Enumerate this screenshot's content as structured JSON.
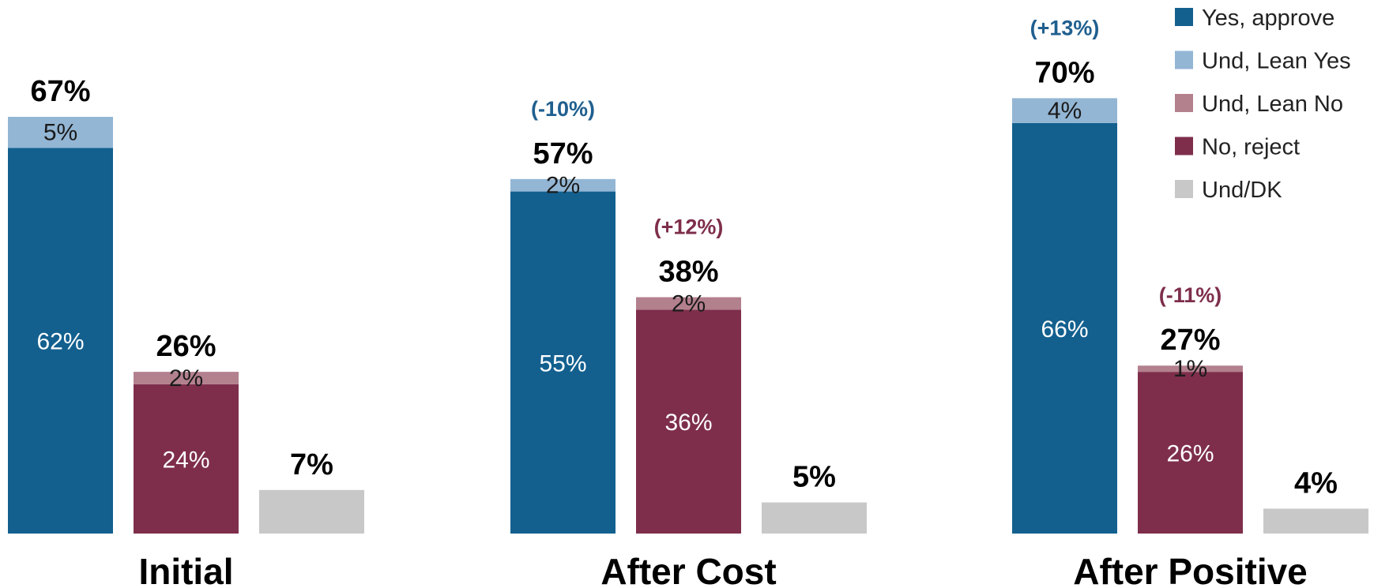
{
  "chart_data": {
    "type": "bar",
    "stacked": true,
    "ylim": [
      0,
      75
    ],
    "grid": false,
    "legend_position": "top-right",
    "colors": {
      "Yes, approve": "#13608f",
      "Und, Lean Yes": "#93b6d4",
      "Und, Lean No": "#b3808e",
      "No, reject": "#7e2e4b",
      "Und/DK": "#c8c8c8"
    },
    "legend": [
      "Yes, approve",
      "Und, Lean Yes",
      "Und, Lean No",
      "No, reject",
      "Und/DK"
    ],
    "groups": [
      {
        "label": "Initial",
        "bars": [
          {
            "key": "approve",
            "total_label": "67%",
            "change": "",
            "segments": [
              {
                "series": "Yes, approve",
                "value": 62,
                "label": "62%"
              },
              {
                "series": "Und, Lean Yes",
                "value": 5,
                "label": "5%"
              }
            ]
          },
          {
            "key": "reject",
            "total_label": "26%",
            "change": "",
            "segments": [
              {
                "series": "No, reject",
                "value": 24,
                "label": "24%"
              },
              {
                "series": "Und, Lean No",
                "value": 2,
                "label": "2%"
              }
            ]
          },
          {
            "key": "dk",
            "total_label": "7%",
            "change": "",
            "segments": [
              {
                "series": "Und/DK",
                "value": 7,
                "label": ""
              }
            ]
          }
        ]
      },
      {
        "label": "After Cost",
        "bars": [
          {
            "key": "approve",
            "total_label": "57%",
            "change": "(-10%)",
            "segments": [
              {
                "series": "Yes, approve",
                "value": 55,
                "label": "55%"
              },
              {
                "series": "Und, Lean Yes",
                "value": 2,
                "label": "2%"
              }
            ]
          },
          {
            "key": "reject",
            "total_label": "38%",
            "change": "(+12%)",
            "segments": [
              {
                "series": "No, reject",
                "value": 36,
                "label": "36%"
              },
              {
                "series": "Und, Lean No",
                "value": 2,
                "label": "2%"
              }
            ]
          },
          {
            "key": "dk",
            "total_label": "5%",
            "change": "",
            "segments": [
              {
                "series": "Und/DK",
                "value": 5,
                "label": ""
              }
            ]
          }
        ]
      },
      {
        "label": "After Positive",
        "bars": [
          {
            "key": "approve",
            "total_label": "70%",
            "change": "(+13%)",
            "segments": [
              {
                "series": "Yes, approve",
                "value": 66,
                "label": "66%"
              },
              {
                "series": "Und, Lean Yes",
                "value": 4,
                "label": "4%"
              }
            ]
          },
          {
            "key": "reject",
            "total_label": "27%",
            "change": "(-11%)",
            "segments": [
              {
                "series": "No, reject",
                "value": 26,
                "label": "26%"
              },
              {
                "series": "Und, Lean No",
                "value": 1,
                "label": "1%"
              }
            ]
          },
          {
            "key": "dk",
            "total_label": "4%",
            "change": "",
            "segments": [
              {
                "series": "Und/DK",
                "value": 4,
                "label": ""
              }
            ]
          }
        ]
      }
    ]
  }
}
